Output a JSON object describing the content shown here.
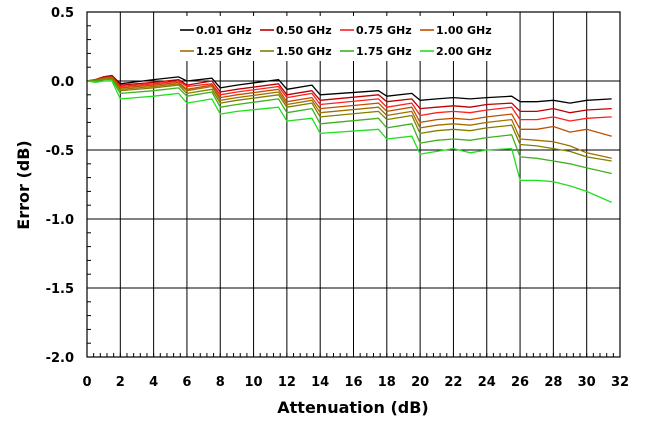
{
  "chart_data": {
    "type": "line",
    "title": "",
    "xlabel": "Attenuation (dB)",
    "ylabel": "Error (dB)",
    "xlim": [
      0,
      32
    ],
    "ylim": [
      -2.0,
      0.5
    ],
    "xticks": [
      0,
      2,
      4,
      6,
      8,
      10,
      12,
      14,
      16,
      18,
      20,
      22,
      24,
      26,
      28,
      30,
      32
    ],
    "xtick_labels": [
      "0",
      "2",
      "4",
      "6",
      "8",
      "10",
      "12",
      "14",
      "16",
      "18",
      "20",
      "22",
      "24",
      "26",
      "28",
      "30",
      "32"
    ],
    "yticks": [
      0.5,
      0.0,
      -0.5,
      -1.0,
      -1.5,
      -2.0
    ],
    "ytick_labels": [
      "0.5",
      "0.0",
      "-0.5",
      "-1.0",
      "-1.5",
      "-2.0"
    ],
    "grid": "vertical every 2 dB, horizontal every 0.5 dB",
    "legend_position": "top-center, inside plot",
    "x": [
      0,
      0.5,
      1,
      1.5,
      2,
      4,
      5.5,
      6,
      7.5,
      8,
      9,
      11.5,
      12,
      13.5,
      14,
      17.5,
      18,
      19.5,
      20,
      21,
      22,
      23,
      24,
      25.5,
      26,
      27,
      28,
      29,
      30,
      31.5
    ],
    "series": [
      {
        "name": "0.01 GHz",
        "color": "#000000",
        "values": [
          0.0,
          0.01,
          0.03,
          0.04,
          -0.02,
          0.01,
          0.03,
          0.0,
          0.02,
          -0.05,
          -0.03,
          0.01,
          -0.06,
          -0.03,
          -0.1,
          -0.07,
          -0.11,
          -0.09,
          -0.14,
          -0.13,
          -0.12,
          -0.13,
          -0.12,
          -0.11,
          -0.15,
          -0.15,
          -0.14,
          -0.16,
          -0.14,
          -0.13
        ]
      },
      {
        "name": "0.50 GHz",
        "color": "#c00000",
        "values": [
          0.0,
          0.01,
          0.03,
          0.04,
          -0.03,
          -0.01,
          0.01,
          -0.03,
          0.0,
          -0.08,
          -0.06,
          -0.02,
          -0.1,
          -0.07,
          -0.14,
          -0.1,
          -0.15,
          -0.13,
          -0.2,
          -0.19,
          -0.18,
          -0.19,
          -0.17,
          -0.16,
          -0.22,
          -0.22,
          -0.2,
          -0.23,
          -0.21,
          -0.2
        ]
      },
      {
        "name": "0.75 GHz",
        "color": "#ff2020",
        "values": [
          0.0,
          0.01,
          0.02,
          0.03,
          -0.04,
          -0.02,
          0.0,
          -0.04,
          -0.02,
          -0.1,
          -0.08,
          -0.04,
          -0.12,
          -0.09,
          -0.17,
          -0.13,
          -0.19,
          -0.16,
          -0.25,
          -0.23,
          -0.22,
          -0.23,
          -0.21,
          -0.19,
          -0.28,
          -0.28,
          -0.26,
          -0.29,
          -0.27,
          -0.26
        ]
      },
      {
        "name": "1.00 GHz",
        "color": "#c05000",
        "values": [
          0.0,
          0.01,
          0.02,
          0.03,
          -0.05,
          -0.03,
          -0.01,
          -0.06,
          -0.03,
          -0.12,
          -0.1,
          -0.06,
          -0.15,
          -0.12,
          -0.2,
          -0.16,
          -0.22,
          -0.19,
          -0.3,
          -0.28,
          -0.27,
          -0.28,
          -0.26,
          -0.24,
          -0.35,
          -0.35,
          -0.33,
          -0.37,
          -0.35,
          -0.4
        ]
      },
      {
        "name": "1.25 GHz",
        "color": "#a07000",
        "values": [
          0.0,
          0.0,
          0.02,
          0.02,
          -0.06,
          -0.04,
          -0.02,
          -0.07,
          -0.04,
          -0.14,
          -0.12,
          -0.08,
          -0.17,
          -0.14,
          -0.23,
          -0.19,
          -0.25,
          -0.22,
          -0.34,
          -0.32,
          -0.31,
          -0.32,
          -0.3,
          -0.28,
          -0.42,
          -0.43,
          -0.44,
          -0.47,
          -0.52,
          -0.56
        ]
      },
      {
        "name": "1.50 GHz",
        "color": "#808000",
        "values": [
          0.0,
          0.0,
          0.01,
          0.02,
          -0.07,
          -0.05,
          -0.03,
          -0.09,
          -0.06,
          -0.16,
          -0.14,
          -0.1,
          -0.19,
          -0.16,
          -0.26,
          -0.22,
          -0.28,
          -0.25,
          -0.38,
          -0.36,
          -0.35,
          -0.36,
          -0.34,
          -0.32,
          -0.46,
          -0.47,
          -0.49,
          -0.51,
          -0.55,
          -0.58
        ]
      },
      {
        "name": "1.75 GHz",
        "color": "#40b020",
        "values": [
          0.0,
          0.0,
          0.01,
          0.01,
          -0.09,
          -0.07,
          -0.05,
          -0.11,
          -0.08,
          -0.19,
          -0.17,
          -0.13,
          -0.23,
          -0.2,
          -0.31,
          -0.27,
          -0.34,
          -0.31,
          -0.45,
          -0.43,
          -0.42,
          -0.43,
          -0.41,
          -0.39,
          -0.55,
          -0.56,
          -0.58,
          -0.6,
          -0.63,
          -0.67
        ]
      },
      {
        "name": "2.00 GHz",
        "color": "#20e020",
        "values": [
          0.0,
          -0.01,
          0.0,
          0.0,
          -0.13,
          -0.11,
          -0.09,
          -0.16,
          -0.13,
          -0.24,
          -0.22,
          -0.19,
          -0.29,
          -0.27,
          -0.38,
          -0.35,
          -0.42,
          -0.4,
          -0.53,
          -0.51,
          -0.49,
          -0.52,
          -0.5,
          -0.49,
          -0.72,
          -0.72,
          -0.73,
          -0.76,
          -0.8,
          -0.88
        ]
      }
    ]
  }
}
